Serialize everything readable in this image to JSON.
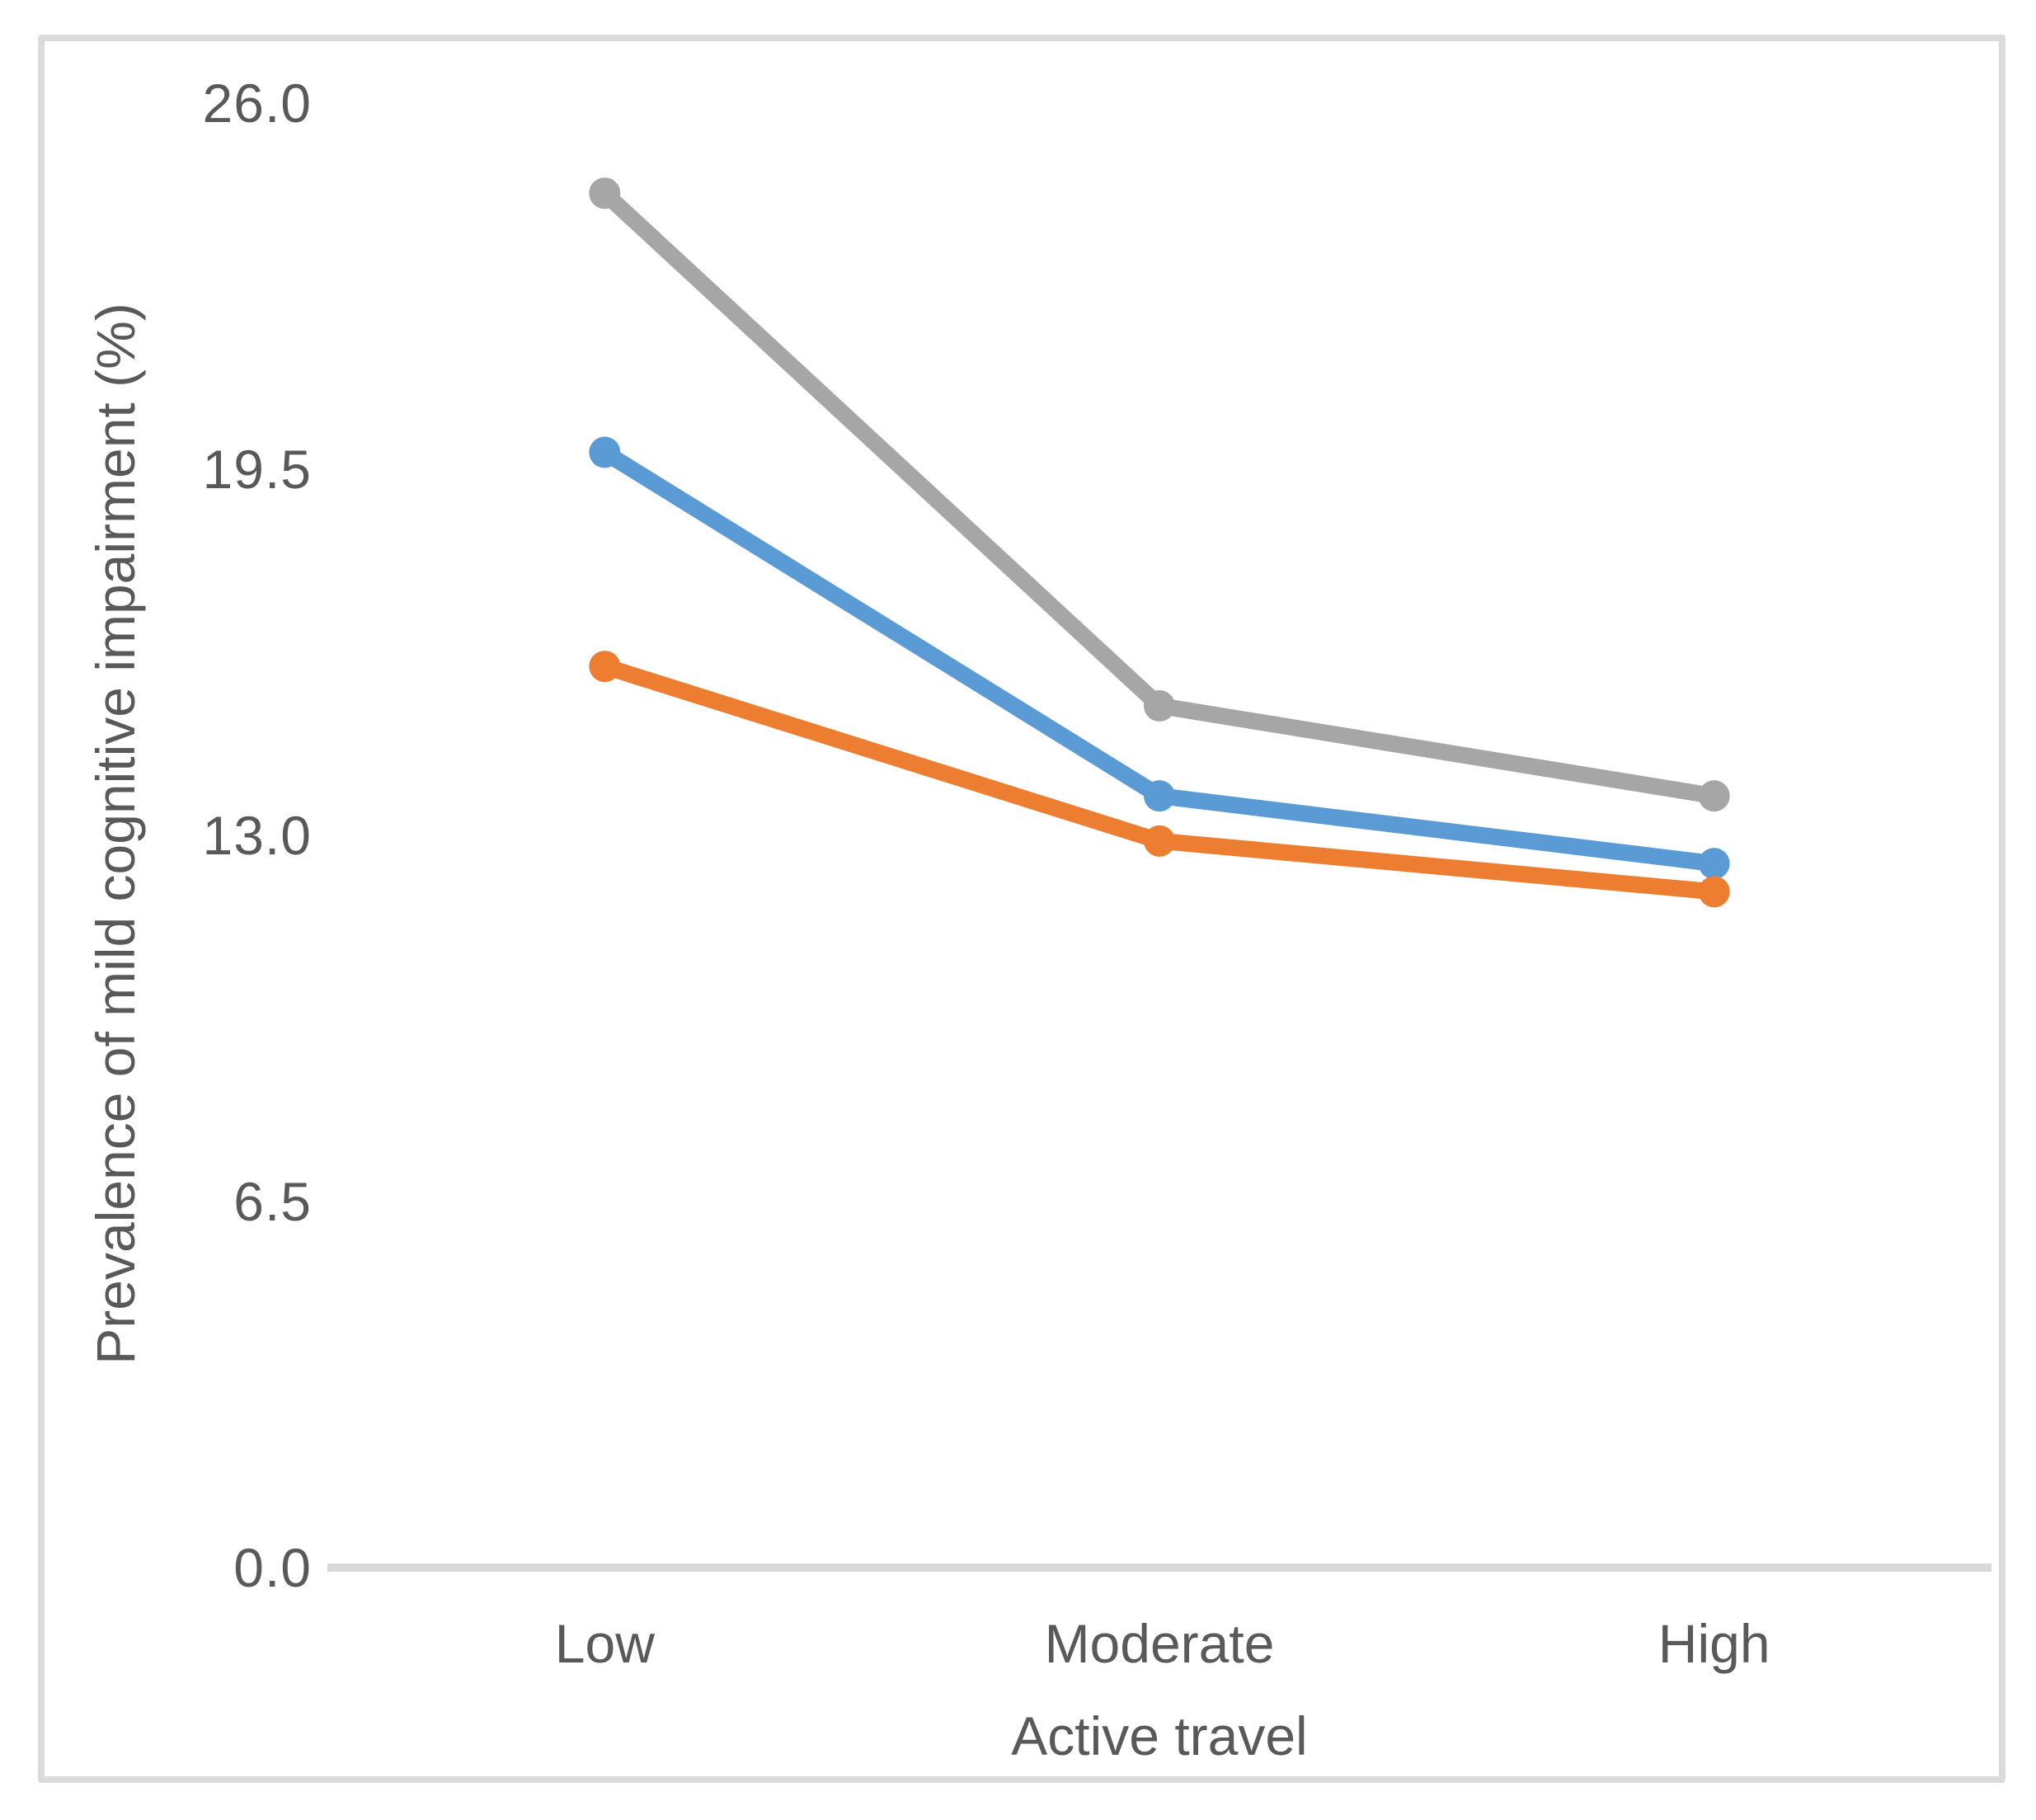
{
  "chart_data": {
    "type": "line",
    "title": "",
    "xlabel": "Active travel",
    "ylabel": "Prevalence of mild cognitive impairment (%)",
    "categories": [
      "Low",
      "Moderate",
      "High"
    ],
    "series": [
      {
        "name": "blue",
        "color": "#5B9BD5",
        "values": [
          19.8,
          13.7,
          12.5
        ]
      },
      {
        "name": "orange",
        "color": "#ED7D31",
        "values": [
          16.0,
          12.9,
          12.0
        ]
      },
      {
        "name": "gray",
        "color": "#A6A6A6",
        "values": [
          24.4,
          15.3,
          13.7
        ]
      }
    ],
    "ylim": [
      0.0,
      26.0
    ],
    "ytick_values": [
      26.0,
      19.5,
      13.0,
      6.5,
      0.0
    ],
    "ytick_labels": [
      "26.0",
      "19.5",
      "13.0",
      "6.5",
      "0.0"
    ],
    "grid": "off",
    "legend": "none",
    "markers": "circle",
    "colors": {
      "axis_line": "#D9D9D9",
      "border": "#DBDBDB",
      "text": "#595959",
      "background": "#FFFFFF"
    }
  }
}
